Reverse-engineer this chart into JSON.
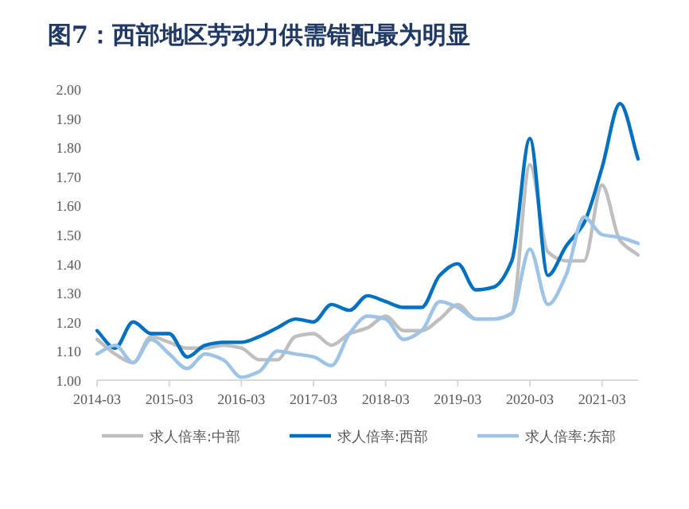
{
  "chart_data": {
    "type": "line",
    "title": "图7：西部地区劳动力供需错配最为明显",
    "x": [
      "2014-03",
      "2014-06",
      "2014-09",
      "2014-12",
      "2015-03",
      "2015-06",
      "2015-09",
      "2015-12",
      "2016-03",
      "2016-06",
      "2016-09",
      "2016-12",
      "2017-03",
      "2017-06",
      "2017-09",
      "2017-12",
      "2018-03",
      "2018-06",
      "2018-09",
      "2018-12",
      "2019-03",
      "2019-06",
      "2019-09",
      "2019-12",
      "2020-03",
      "2020-06",
      "2020-09",
      "2020-12",
      "2021-03",
      "2021-06",
      "2021-09"
    ],
    "series": [
      {
        "name": "求人倍率:中部",
        "color": "#bfbfbf",
        "values": [
          1.14,
          1.09,
          1.06,
          1.15,
          1.13,
          1.11,
          1.11,
          1.12,
          1.11,
          1.07,
          1.07,
          1.15,
          1.16,
          1.12,
          1.16,
          1.18,
          1.22,
          1.17,
          1.17,
          1.21,
          1.26,
          1.21,
          1.21,
          1.23,
          1.74,
          1.44,
          1.41,
          1.41,
          1.67,
          1.48,
          1.43
        ]
      },
      {
        "name": "求人倍率:西部",
        "color": "#0070c0",
        "values": [
          1.17,
          1.11,
          1.2,
          1.16,
          1.16,
          1.08,
          1.12,
          1.13,
          1.13,
          1.15,
          1.18,
          1.21,
          1.2,
          1.26,
          1.24,
          1.29,
          1.27,
          1.25,
          1.25,
          1.36,
          1.4,
          1.31,
          1.32,
          1.41,
          1.83,
          1.36,
          1.46,
          1.54,
          1.73,
          1.95,
          1.76
        ]
      },
      {
        "name": "求人倍率:东部",
        "color": "#9dc3e6",
        "values": [
          1.09,
          1.12,
          1.06,
          1.14,
          1.09,
          1.04,
          1.09,
          1.07,
          1.01,
          1.03,
          1.1,
          1.09,
          1.08,
          1.05,
          1.16,
          1.22,
          1.21,
          1.14,
          1.17,
          1.27,
          1.25,
          1.21,
          1.21,
          1.23,
          1.45,
          1.26,
          1.36,
          1.56,
          1.5,
          1.49,
          1.47
        ]
      }
    ],
    "xlim": [
      "2014-03",
      "2021-09"
    ],
    "xticks": [
      "2014-03",
      "2015-03",
      "2016-03",
      "2017-03",
      "2018-03",
      "2019-03",
      "2020-03",
      "2021-03"
    ],
    "ylim": [
      1.0,
      2.0
    ],
    "yticks": [
      {
        "value": 1.0,
        "label": "1.00"
      },
      {
        "value": 1.1,
        "label": "1.10"
      },
      {
        "value": 1.2,
        "label": "1.20"
      },
      {
        "value": 1.3,
        "label": "1.30"
      },
      {
        "value": 1.4,
        "label": "1.40"
      },
      {
        "value": 1.5,
        "label": "1.50"
      },
      {
        "value": 1.6,
        "label": "1.60"
      },
      {
        "value": 1.7,
        "label": "1.70"
      },
      {
        "value": 1.8,
        "label": "1.80"
      },
      {
        "value": 1.9,
        "label": "1.90"
      },
      {
        "value": 2.0,
        "label": "2.00"
      }
    ],
    "grid": false,
    "legend": "bottom",
    "marker": "none",
    "line_style": "solid"
  }
}
